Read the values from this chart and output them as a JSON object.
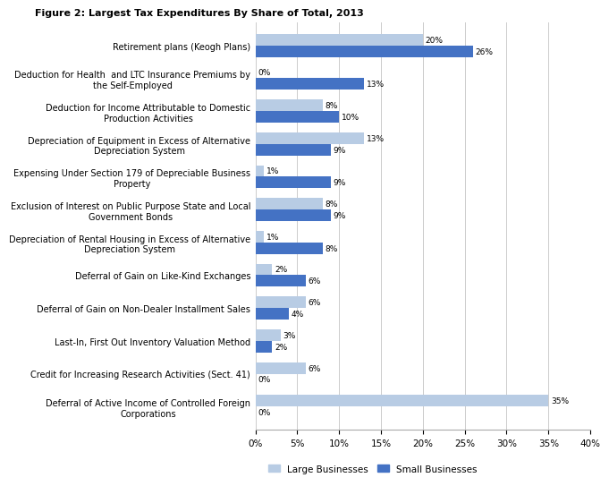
{
  "title": "Figure 2: Largest Tax Expenditures By Share of Total, 2013",
  "categories": [
    "Deferral of Active Income of Controlled Foreign\nCorporations",
    "Credit for Increasing Research Activities (Sect. 41)",
    "Last-In, First Out Inventory Valuation Method",
    "Deferral of Gain on Non-Dealer Installment Sales",
    "Deferral of Gain on Like-Kind Exchanges",
    "Depreciation of Rental Housing in Excess of Alternative\nDepreciation System",
    "Exclusion of Interest on Public Purpose State and Local\nGovernment Bonds",
    "Expensing Under Section 179 of Depreciable Business\nProperty",
    "Depreciation of Equipment in Excess of Alternative\nDepreciation System",
    "Deduction for Income Attributable to Domestic\nProduction Activities",
    "Deduction for Health  and LTC Insurance Premiums by\nthe Self-Employed",
    "Retirement plans (Keogh Plans)"
  ],
  "large_businesses": [
    35,
    6,
    3,
    6,
    2,
    1,
    8,
    1,
    13,
    8,
    0,
    20
  ],
  "small_businesses": [
    0,
    0,
    2,
    4,
    6,
    8,
    9,
    9,
    9,
    10,
    13,
    26
  ],
  "color_large": "#b8cce4",
  "color_small": "#4472c4",
  "xlabel_ticks": [
    "0%",
    "5%",
    "10%",
    "15%",
    "20%",
    "25%",
    "30%",
    "35%",
    "40%"
  ],
  "xlabel_vals": [
    0,
    5,
    10,
    15,
    20,
    25,
    30,
    35,
    40
  ],
  "legend_large": "Large Businesses",
  "legend_small": "Small Businesses",
  "bar_height": 0.35,
  "background_color": "#ffffff",
  "title_fontsize": 8.0,
  "label_fontsize": 7.0,
  "tick_fontsize": 7.5,
  "value_fontsize": 6.5
}
